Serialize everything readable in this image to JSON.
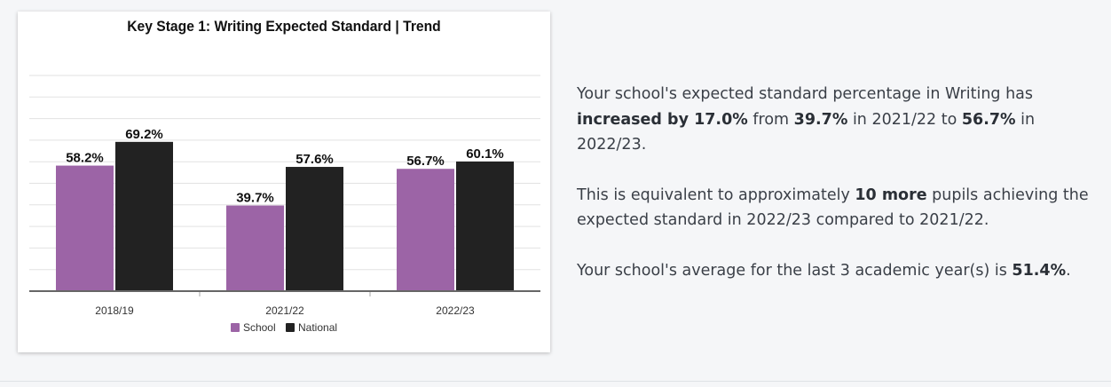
{
  "chart_data": {
    "type": "bar",
    "title": "Key Stage 1: Writing Expected Standard | Trend",
    "categories": [
      "2018/19",
      "2021/22",
      "2022/23"
    ],
    "series": [
      {
        "name": "School",
        "values": [
          58.2,
          39.7,
          56.7
        ],
        "labels": [
          "58.2%",
          "39.7%",
          "56.7%"
        ],
        "color": "#9c64a6"
      },
      {
        "name": "National",
        "values": [
          69.2,
          57.6,
          60.1
        ],
        "labels": [
          "69.2%",
          "57.6%",
          "60.1%"
        ],
        "color": "#222222"
      }
    ],
    "ylim": [
      0,
      100
    ],
    "grid": true,
    "legend": "bottom-center"
  },
  "summary": {
    "p1": {
      "a": "Your school's expected standard percentage in Writing has ",
      "b": "increased by 17.0%",
      "c": " from ",
      "d": "39.7%",
      "e": " in 2021/22 to ",
      "f": "56.7%",
      "g": " in 2022/23."
    },
    "p2": {
      "a": "This is equivalent to approximately ",
      "b": "10 more",
      "c": " pupils achieving the expected standard in 2022/23 compared to 2021/22."
    },
    "p3": {
      "a": "Your school's average for the last 3 academic year(s) is ",
      "b": "51.4%",
      "c": "."
    }
  }
}
